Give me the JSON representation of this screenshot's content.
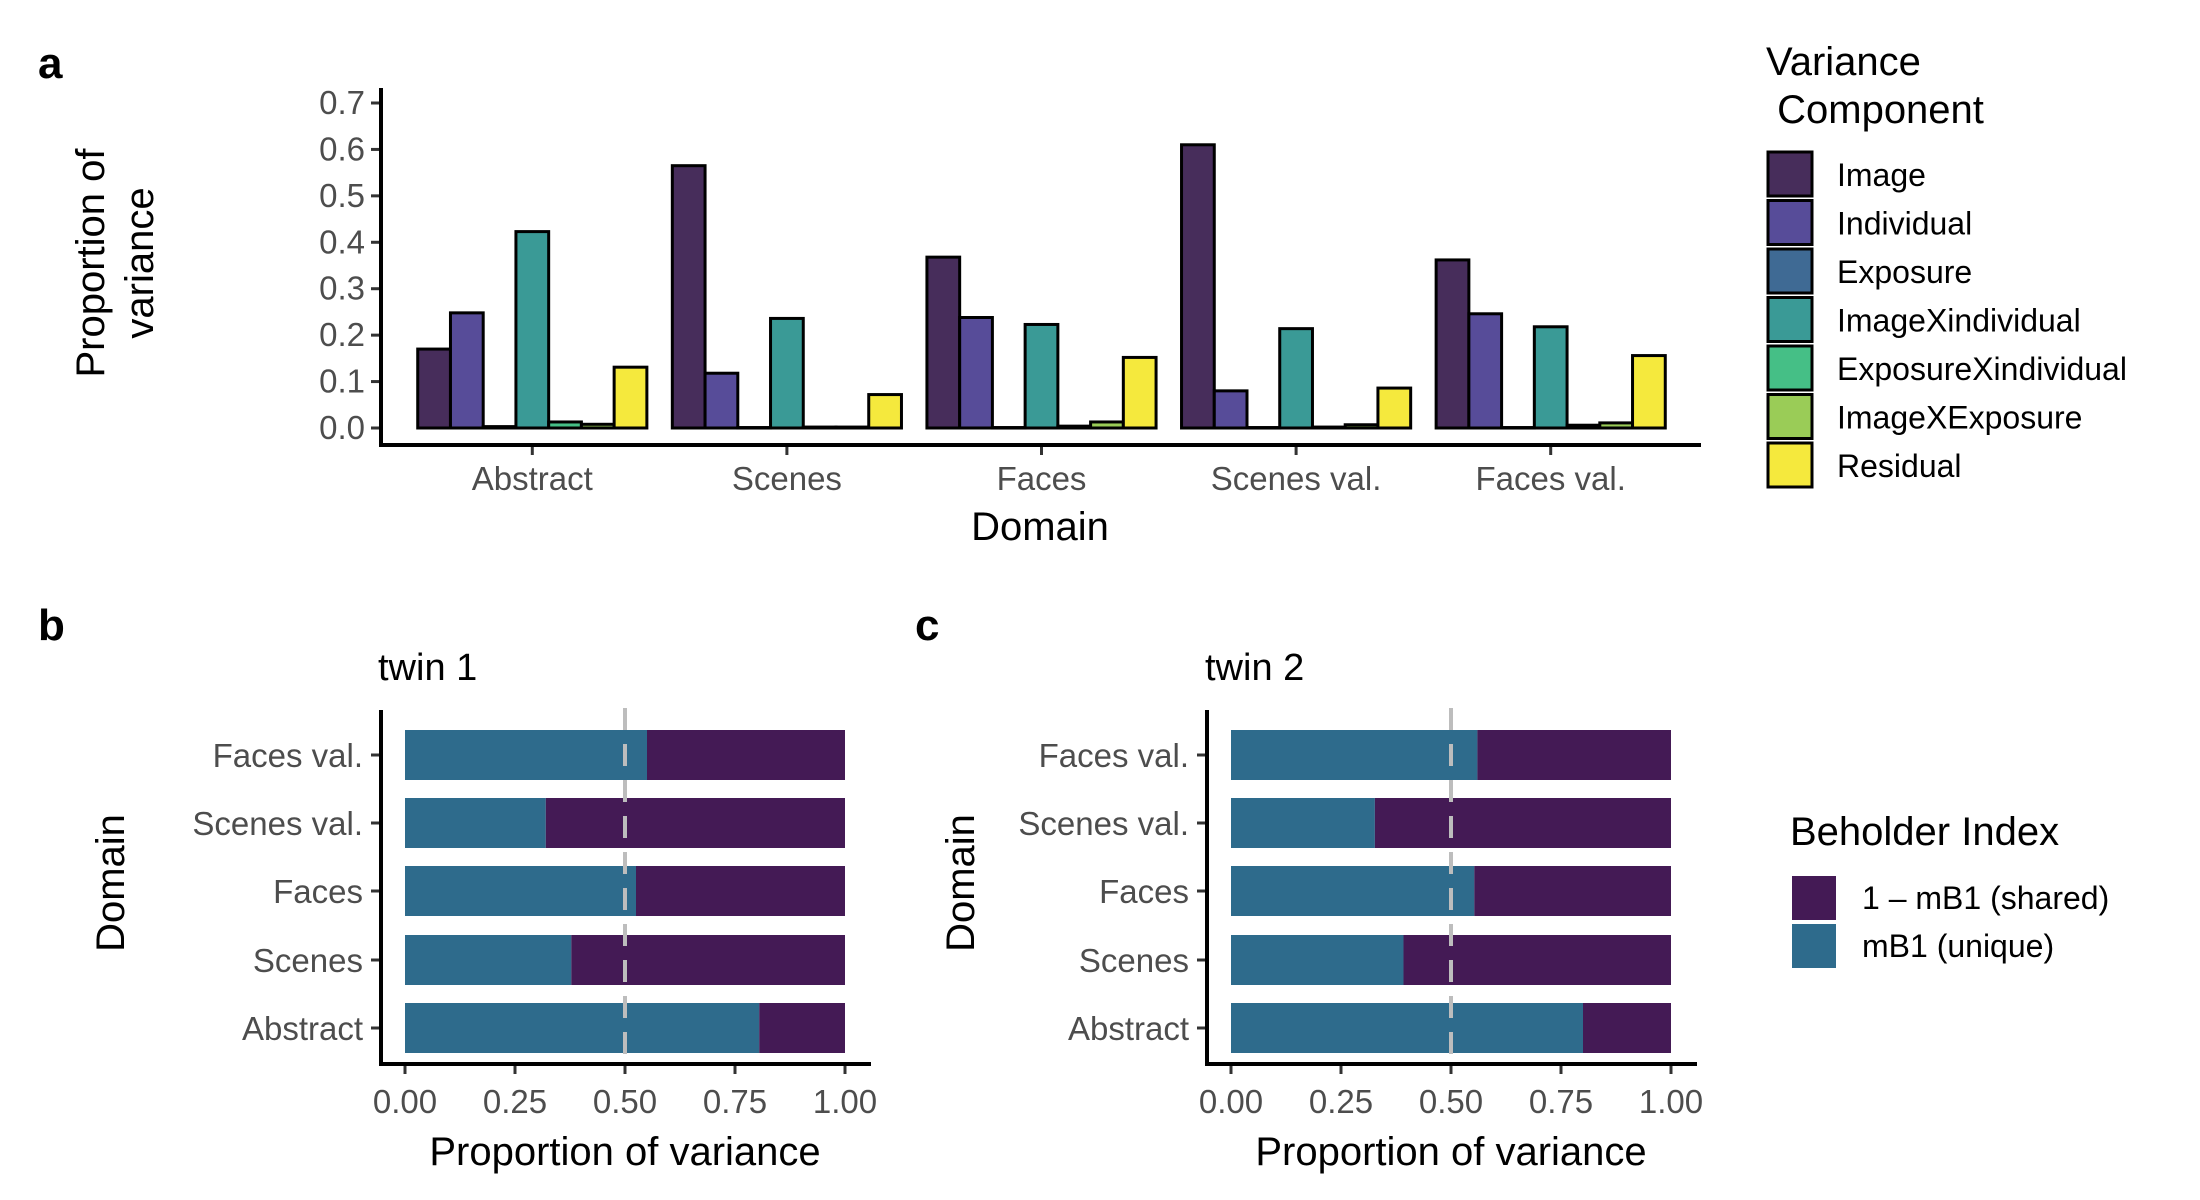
{
  "chart_data": [
    {
      "panel": "a",
      "type": "bar",
      "xlabel": "Domain",
      "ylabel_lines": [
        "Proportion of",
        "variance"
      ],
      "ylim": [
        0,
        0.7
      ],
      "yticks": [
        "0.0",
        "0.1",
        "0.2",
        "0.3",
        "0.4",
        "0.5",
        "0.6",
        "0.7"
      ],
      "categories": [
        "Abstract",
        "Scenes",
        "Faces",
        "Scenes val.",
        "Faces val."
      ],
      "series": [
        {
          "name": "Image",
          "color": "#472D5B",
          "values": [
            0.17,
            0.565,
            0.368,
            0.61,
            0.362
          ]
        },
        {
          "name": "Individual",
          "color": "#574C99",
          "values": [
            0.248,
            0.118,
            0.238,
            0.08,
            0.246
          ]
        },
        {
          "name": "Exposure",
          "color": "#3F6A94",
          "values": [
            0.003,
            0.001,
            0.001,
            0.001,
            0.001
          ]
        },
        {
          "name": "ImageXindividual",
          "color": "#3A9A96",
          "values": [
            0.423,
            0.236,
            0.223,
            0.214,
            0.218
          ]
        },
        {
          "name": "ExposureXindividual",
          "color": "#45BF86",
          "values": [
            0.013,
            0.002,
            0.004,
            0.002,
            0.006
          ]
        },
        {
          "name": "ImageXExposure",
          "color": "#9ACC57",
          "values": [
            0.008,
            0.002,
            0.013,
            0.007,
            0.011
          ]
        },
        {
          "name": "Residual",
          "color": "#F5E93D",
          "values": [
            0.131,
            0.072,
            0.152,
            0.086,
            0.156
          ]
        }
      ],
      "legend": {
        "title_lines": [
          "Variance",
          " Component"
        ],
        "position": "right"
      }
    },
    {
      "panel": "b",
      "type": "bar",
      "orientation": "horizontal",
      "stacked": true,
      "title": "twin 1",
      "xlabel": "Proportion of variance",
      "ylabel": "Domain",
      "xlim": [
        0,
        1
      ],
      "xticks": [
        "0.00",
        "0.25",
        "0.50",
        "0.75",
        "1.00"
      ],
      "reference_line": 0.5,
      "categories": [
        "Faces val.",
        "Scenes val.",
        "Faces",
        "Scenes",
        "Abstract"
      ],
      "series": [
        {
          "name": "mB1 (unique)",
          "color": "#2E6B8C",
          "values": [
            0.55,
            0.32,
            0.525,
            0.378,
            0.805
          ]
        },
        {
          "name": "1 – mB1 (shared)",
          "color": "#441A55",
          "values": [
            0.45,
            0.68,
            0.475,
            0.622,
            0.195
          ]
        }
      ]
    },
    {
      "panel": "c",
      "type": "bar",
      "orientation": "horizontal",
      "stacked": true,
      "title": "twin 2",
      "xlabel": "Proportion of variance",
      "ylabel": "Domain",
      "xlim": [
        0,
        1
      ],
      "xticks": [
        "0.00",
        "0.25",
        "0.50",
        "0.75",
        "1.00"
      ],
      "reference_line": 0.5,
      "categories": [
        "Faces val.",
        "Scenes val.",
        "Faces",
        "Scenes",
        "Abstract"
      ],
      "series": [
        {
          "name": "mB1 (unique)",
          "color": "#2E6B8C",
          "values": [
            0.56,
            0.327,
            0.553,
            0.392,
            0.8
          ]
        },
        {
          "name": "1 – mB1 (shared)",
          "color": "#441A55",
          "values": [
            0.44,
            0.673,
            0.447,
            0.608,
            0.2
          ]
        }
      ],
      "legend": {
        "title": "Beholder Index",
        "order": [
          "1 – mB1 (shared)",
          "mB1 (unique)"
        ],
        "position": "right"
      }
    }
  ]
}
